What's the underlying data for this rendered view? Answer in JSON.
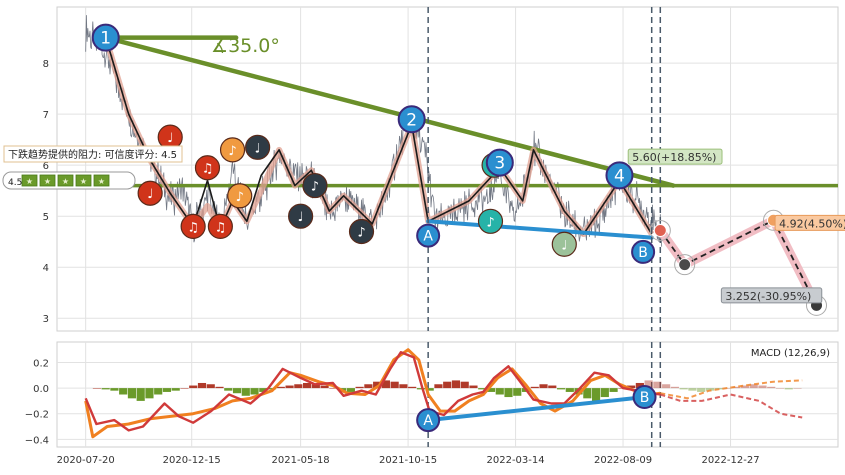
{
  "chart_data": [
    {
      "type": "line",
      "panel": "price",
      "x_tick_labels": [
        "2020-07-20",
        "2020-12-15",
        "2021-05-18",
        "2021-10-15",
        "2022-03-14",
        "2022-08-09",
        "2022-12-27"
      ],
      "x_ticks": [
        0,
        148,
        300,
        450,
        600,
        750,
        900
      ],
      "xlim": [
        -40,
        1050
      ],
      "ylim": [
        2.75,
        9.1
      ],
      "y_ticks": [
        3,
        4,
        5,
        6,
        7,
        8
      ],
      "grid": true,
      "colors": {
        "price": "#5a6270",
        "trend_green": "#6a8f2a",
        "support_blue": "#2a8fd0",
        "forecast_pink": "#f0b6be",
        "zigzag": "#1a1a1a",
        "vline": "#4a5a6a"
      },
      "price_anchors": [
        [
          0,
          8.6
        ],
        [
          28,
          8.2
        ],
        [
          60,
          7.0
        ],
        [
          90,
          6.1
        ],
        [
          118,
          5.3
        ],
        [
          135,
          5.5
        ],
        [
          150,
          4.8
        ],
        [
          170,
          5.4
        ],
        [
          188,
          4.75
        ],
        [
          205,
          5.9
        ],
        [
          225,
          4.9
        ],
        [
          245,
          5.4
        ],
        [
          270,
          6.2
        ],
        [
          292,
          5.8
        ],
        [
          315,
          5.7
        ],
        [
          340,
          5.0
        ],
        [
          360,
          5.4
        ],
        [
          380,
          5.2
        ],
        [
          400,
          4.85
        ],
        [
          420,
          5.4
        ],
        [
          440,
          6.5
        ],
        [
          455,
          6.85
        ],
        [
          475,
          6.2
        ],
        [
          488,
          4.9
        ],
        [
          510,
          4.95
        ],
        [
          535,
          5.3
        ],
        [
          560,
          5.3
        ],
        [
          578,
          5.95
        ],
        [
          595,
          5.0
        ],
        [
          610,
          5.4
        ],
        [
          625,
          6.35
        ],
        [
          645,
          5.8
        ],
        [
          668,
          5.1
        ],
        [
          695,
          4.6
        ],
        [
          720,
          5.0
        ],
        [
          745,
          5.7
        ],
        [
          770,
          5.3
        ],
        [
          790,
          4.9
        ],
        [
          805,
          4.6
        ]
      ],
      "vertical_lines_x": [
        478,
        790,
        802
      ],
      "horizontal_line_y": 5.6,
      "trend_lines": [
        {
          "x1": 28,
          "y1": 8.5,
          "x2": 210,
          "y2": 8.5
        },
        {
          "x1": 28,
          "y1": 8.5,
          "x2": 820,
          "y2": 5.6
        }
      ],
      "support_line": {
        "x1": 478,
        "y1": 4.9,
        "x2": 790,
        "y2": 4.58
      },
      "zigzag_light": [
        [
          28,
          8.5
        ],
        [
          60,
          7.0
        ],
        [
          90,
          6.1
        ],
        [
          118,
          5.45
        ],
        [
          150,
          4.8
        ],
        [
          170,
          5.2
        ],
        [
          188,
          4.75
        ],
        [
          205,
          5.3
        ],
        [
          225,
          4.9
        ],
        [
          245,
          5.5
        ],
        [
          270,
          6.3
        ],
        [
          292,
          5.6
        ],
        [
          315,
          5.9
        ],
        [
          340,
          5.1
        ],
        [
          360,
          5.4
        ],
        [
          400,
          4.85
        ],
        [
          455,
          6.8
        ],
        [
          478,
          4.9
        ],
        [
          535,
          5.3
        ],
        [
          578,
          5.95
        ],
        [
          610,
          5.3
        ],
        [
          625,
          6.3
        ],
        [
          668,
          5.1
        ],
        [
          695,
          4.65
        ],
        [
          745,
          5.7
        ],
        [
          790,
          4.65
        ]
      ],
      "zigzag_dark": [
        [
          28,
          8.5
        ],
        [
          60,
          7.0
        ],
        [
          90,
          6.1
        ],
        [
          118,
          5.45
        ],
        [
          150,
          4.8
        ],
        [
          170,
          5.7
        ],
        [
          188,
          4.75
        ],
        [
          205,
          5.3
        ],
        [
          225,
          4.9
        ],
        [
          245,
          5.8
        ],
        [
          270,
          6.3
        ],
        [
          292,
          5.6
        ],
        [
          315,
          5.9
        ],
        [
          340,
          5.1
        ],
        [
          360,
          5.4
        ],
        [
          400,
          4.85
        ],
        [
          455,
          6.8
        ],
        [
          478,
          4.9
        ],
        [
          535,
          5.3
        ],
        [
          578,
          5.95
        ],
        [
          610,
          5.3
        ],
        [
          625,
          6.3
        ],
        [
          668,
          5.1
        ],
        [
          695,
          4.65
        ],
        [
          745,
          5.7
        ],
        [
          790,
          4.65
        ]
      ],
      "forecast_path": [
        [
          802,
          4.72
        ],
        [
          836,
          4.05
        ],
        [
          960,
          4.92
        ],
        [
          1020,
          3.252
        ]
      ],
      "forecast_markers": [
        {
          "x": 802,
          "y": 4.72,
          "color": "#e06050"
        },
        {
          "x": 836,
          "y": 4.05,
          "color": "#4a4a4a"
        },
        {
          "x": 960,
          "y": 4.92,
          "color": "#f0a060"
        },
        {
          "x": 1020,
          "y": 3.252,
          "color": "#3a3a3a"
        }
      ],
      "numbered_points": [
        {
          "label": "1",
          "x": 28,
          "y": 8.5
        },
        {
          "label": "2",
          "x": 455,
          "y": 6.9
        },
        {
          "label": "3",
          "x": 578,
          "y": 6.05
        },
        {
          "label": "4",
          "x": 745,
          "y": 5.8
        }
      ],
      "letter_points": [
        {
          "label": "A",
          "x": 478,
          "y": 4.62
        },
        {
          "label": "B",
          "x": 778,
          "y": 4.3
        }
      ],
      "note_markers": [
        {
          "x": 90,
          "y": 5.45,
          "color": "#d0341a",
          "glyph": "♩"
        },
        {
          "x": 118,
          "y": 6.55,
          "color": "#d0341a",
          "glyph": "♩"
        },
        {
          "x": 150,
          "y": 4.8,
          "color": "#d0341a",
          "glyph": "♫"
        },
        {
          "x": 170,
          "y": 5.95,
          "color": "#d0341a",
          "glyph": "♫"
        },
        {
          "x": 188,
          "y": 4.8,
          "color": "#d0341a",
          "glyph": "♫"
        },
        {
          "x": 205,
          "y": 6.3,
          "color": "#f09a40",
          "glyph": "♪"
        },
        {
          "x": 215,
          "y": 5.4,
          "color": "#f09a40",
          "glyph": "♪"
        },
        {
          "x": 240,
          "y": 6.35,
          "color": "#2f3b45",
          "glyph": "♩"
        },
        {
          "x": 300,
          "y": 5.0,
          "color": "#2f3b45",
          "glyph": "♩"
        },
        {
          "x": 320,
          "y": 5.6,
          "color": "#2f3b45",
          "glyph": "♪"
        },
        {
          "x": 385,
          "y": 4.7,
          "color": "#2f3b45",
          "glyph": "♪"
        },
        {
          "x": 565,
          "y": 4.9,
          "color": "#26b3a8",
          "glyph": "♪"
        },
        {
          "x": 570,
          "y": 6.0,
          "color": "#26b3a8",
          "glyph": "♪"
        },
        {
          "x": 668,
          "y": 4.45,
          "color": "#9cc29a",
          "glyph": "♩"
        }
      ]
    },
    {
      "type": "line",
      "panel": "macd",
      "title": "MACD (12,26,9)",
      "ylim": [
        -0.46,
        0.36
      ],
      "y_ticks": [
        0.2,
        0.0,
        -0.2,
        -0.4
      ],
      "y_tick_labels": [
        "0.2",
        "0.0",
        "−0.2",
        "−0.4"
      ],
      "grid": true,
      "colors": {
        "dif": "#d03a3a",
        "dea": "#f08020",
        "hist_pos": "#b03a2a",
        "hist_neg": "#6a9a2a",
        "support_blue": "#2a8fd0"
      },
      "dif_anchors": [
        [
          0,
          -0.08
        ],
        [
          15,
          -0.28
        ],
        [
          40,
          -0.25
        ],
        [
          60,
          -0.33
        ],
        [
          80,
          -0.3
        ],
        [
          110,
          -0.12
        ],
        [
          130,
          -0.22
        ],
        [
          150,
          -0.27
        ],
        [
          175,
          -0.18
        ],
        [
          200,
          -0.05
        ],
        [
          230,
          -0.12
        ],
        [
          255,
          0.0
        ],
        [
          275,
          0.15
        ],
        [
          300,
          0.08
        ],
        [
          320,
          0.03
        ],
        [
          345,
          0.04
        ],
        [
          360,
          -0.06
        ],
        [
          385,
          -0.02
        ],
        [
          405,
          -0.05
        ],
        [
          425,
          0.15
        ],
        [
          440,
          0.28
        ],
        [
          458,
          0.24
        ],
        [
          470,
          0.0
        ],
        [
          480,
          -0.18
        ],
        [
          500,
          -0.21
        ],
        [
          520,
          -0.1
        ],
        [
          540,
          -0.05
        ],
        [
          555,
          -0.03
        ],
        [
          570,
          0.08
        ],
        [
          590,
          0.17
        ],
        [
          605,
          0.06
        ],
        [
          625,
          -0.09
        ],
        [
          650,
          -0.12
        ],
        [
          668,
          -0.12
        ],
        [
          690,
          0.0
        ],
        [
          710,
          0.12
        ],
        [
          730,
          0.1
        ],
        [
          750,
          0.0
        ],
        [
          770,
          -0.02
        ],
        [
          790,
          -0.04
        ],
        [
          802,
          -0.05
        ],
        [
          830,
          -0.1
        ],
        [
          860,
          -0.1
        ],
        [
          900,
          -0.05
        ],
        [
          940,
          -0.1
        ],
        [
          970,
          -0.2
        ],
        [
          1000,
          -0.23
        ]
      ],
      "dea_anchors": [
        [
          0,
          -0.1
        ],
        [
          10,
          -0.38
        ],
        [
          30,
          -0.3
        ],
        [
          60,
          -0.28
        ],
        [
          90,
          -0.24
        ],
        [
          120,
          -0.22
        ],
        [
          150,
          -0.2
        ],
        [
          180,
          -0.16
        ],
        [
          205,
          -0.1
        ],
        [
          230,
          -0.08
        ],
        [
          260,
          -0.02
        ],
        [
          285,
          0.12
        ],
        [
          300,
          0.1
        ],
        [
          325,
          0.05
        ],
        [
          345,
          0.02
        ],
        [
          365,
          -0.04
        ],
        [
          390,
          -0.05
        ],
        [
          410,
          0.02
        ],
        [
          430,
          0.22
        ],
        [
          450,
          0.3
        ],
        [
          465,
          0.22
        ],
        [
          478,
          -0.05
        ],
        [
          495,
          -0.18
        ],
        [
          515,
          -0.18
        ],
        [
          535,
          -0.1
        ],
        [
          555,
          -0.05
        ],
        [
          575,
          0.08
        ],
        [
          595,
          0.15
        ],
        [
          615,
          0.02
        ],
        [
          635,
          -0.12
        ],
        [
          655,
          -0.18
        ],
        [
          680,
          -0.1
        ],
        [
          705,
          0.06
        ],
        [
          725,
          0.1
        ],
        [
          745,
          0.03
        ],
        [
          770,
          -0.03
        ],
        [
          790,
          -0.05
        ],
        [
          802,
          -0.04
        ],
        [
          840,
          -0.08
        ],
        [
          870,
          -0.02
        ],
        [
          920,
          0.02
        ],
        [
          960,
          0.05
        ],
        [
          1000,
          0.06
        ]
      ],
      "histogram": [
        0.0,
        -0.01,
        -0.02,
        -0.05,
        -0.08,
        -0.1,
        -0.08,
        -0.05,
        -0.03,
        -0.02,
        0.0,
        0.02,
        0.04,
        0.03,
        0.01,
        -0.02,
        -0.04,
        -0.06,
        -0.05,
        -0.03,
        -0.01,
        0.01,
        0.02,
        0.03,
        0.04,
        0.03,
        0.02,
        0.0,
        -0.02,
        -0.03,
        0.01,
        0.03,
        0.05,
        0.06,
        0.05,
        0.03,
        0.01,
        -0.01,
        -0.02,
        0.03,
        0.05,
        0.06,
        0.05,
        0.02,
        -0.01,
        -0.03,
        -0.05,
        -0.07,
        -0.06,
        -0.03,
        0.01,
        0.03,
        0.02,
        -0.01,
        -0.03,
        -0.05,
        -0.08,
        -0.1,
        -0.07,
        -0.03,
        0.0,
        0.02,
        0.04,
        0.06,
        0.05,
        0.03,
        0.01,
        -0.01,
        -0.02,
        -0.03,
        -0.02,
        -0.01,
        0.0,
        0.01,
        0.02,
        0.03,
        0.02,
        0.01,
        0.0,
        -0.01,
        0.0
      ],
      "support_line": {
        "x1": 478,
        "y1": -0.25,
        "x2": 780,
        "y2": -0.07
      },
      "letter_points": [
        {
          "label": "A",
          "x": 478,
          "y": -0.25
        },
        {
          "label": "B",
          "x": 780,
          "y": -0.07
        }
      ]
    }
  ],
  "annotations": {
    "angle_label": "∡35.0°",
    "resistance_label": "下跌趋势提供的阻力: 可信度评分: 4.5",
    "score_label": "4.5",
    "forecast_labels": [
      {
        "text": "5.60(+18.85%)",
        "x": 760,
        "y": 6.1,
        "bg": "#d3e6c4",
        "border": "#9cc07a"
      },
      {
        "text": "4.92(4.50%)",
        "x": 965,
        "y": 4.8,
        "bg": "#fac9a0",
        "border": "#e89a5a"
      },
      {
        "text": "3.252(-30.95%)",
        "x": 890,
        "y": 3.38,
        "bg": "#c8ccd0",
        "border": "#8a9096"
      }
    ]
  }
}
